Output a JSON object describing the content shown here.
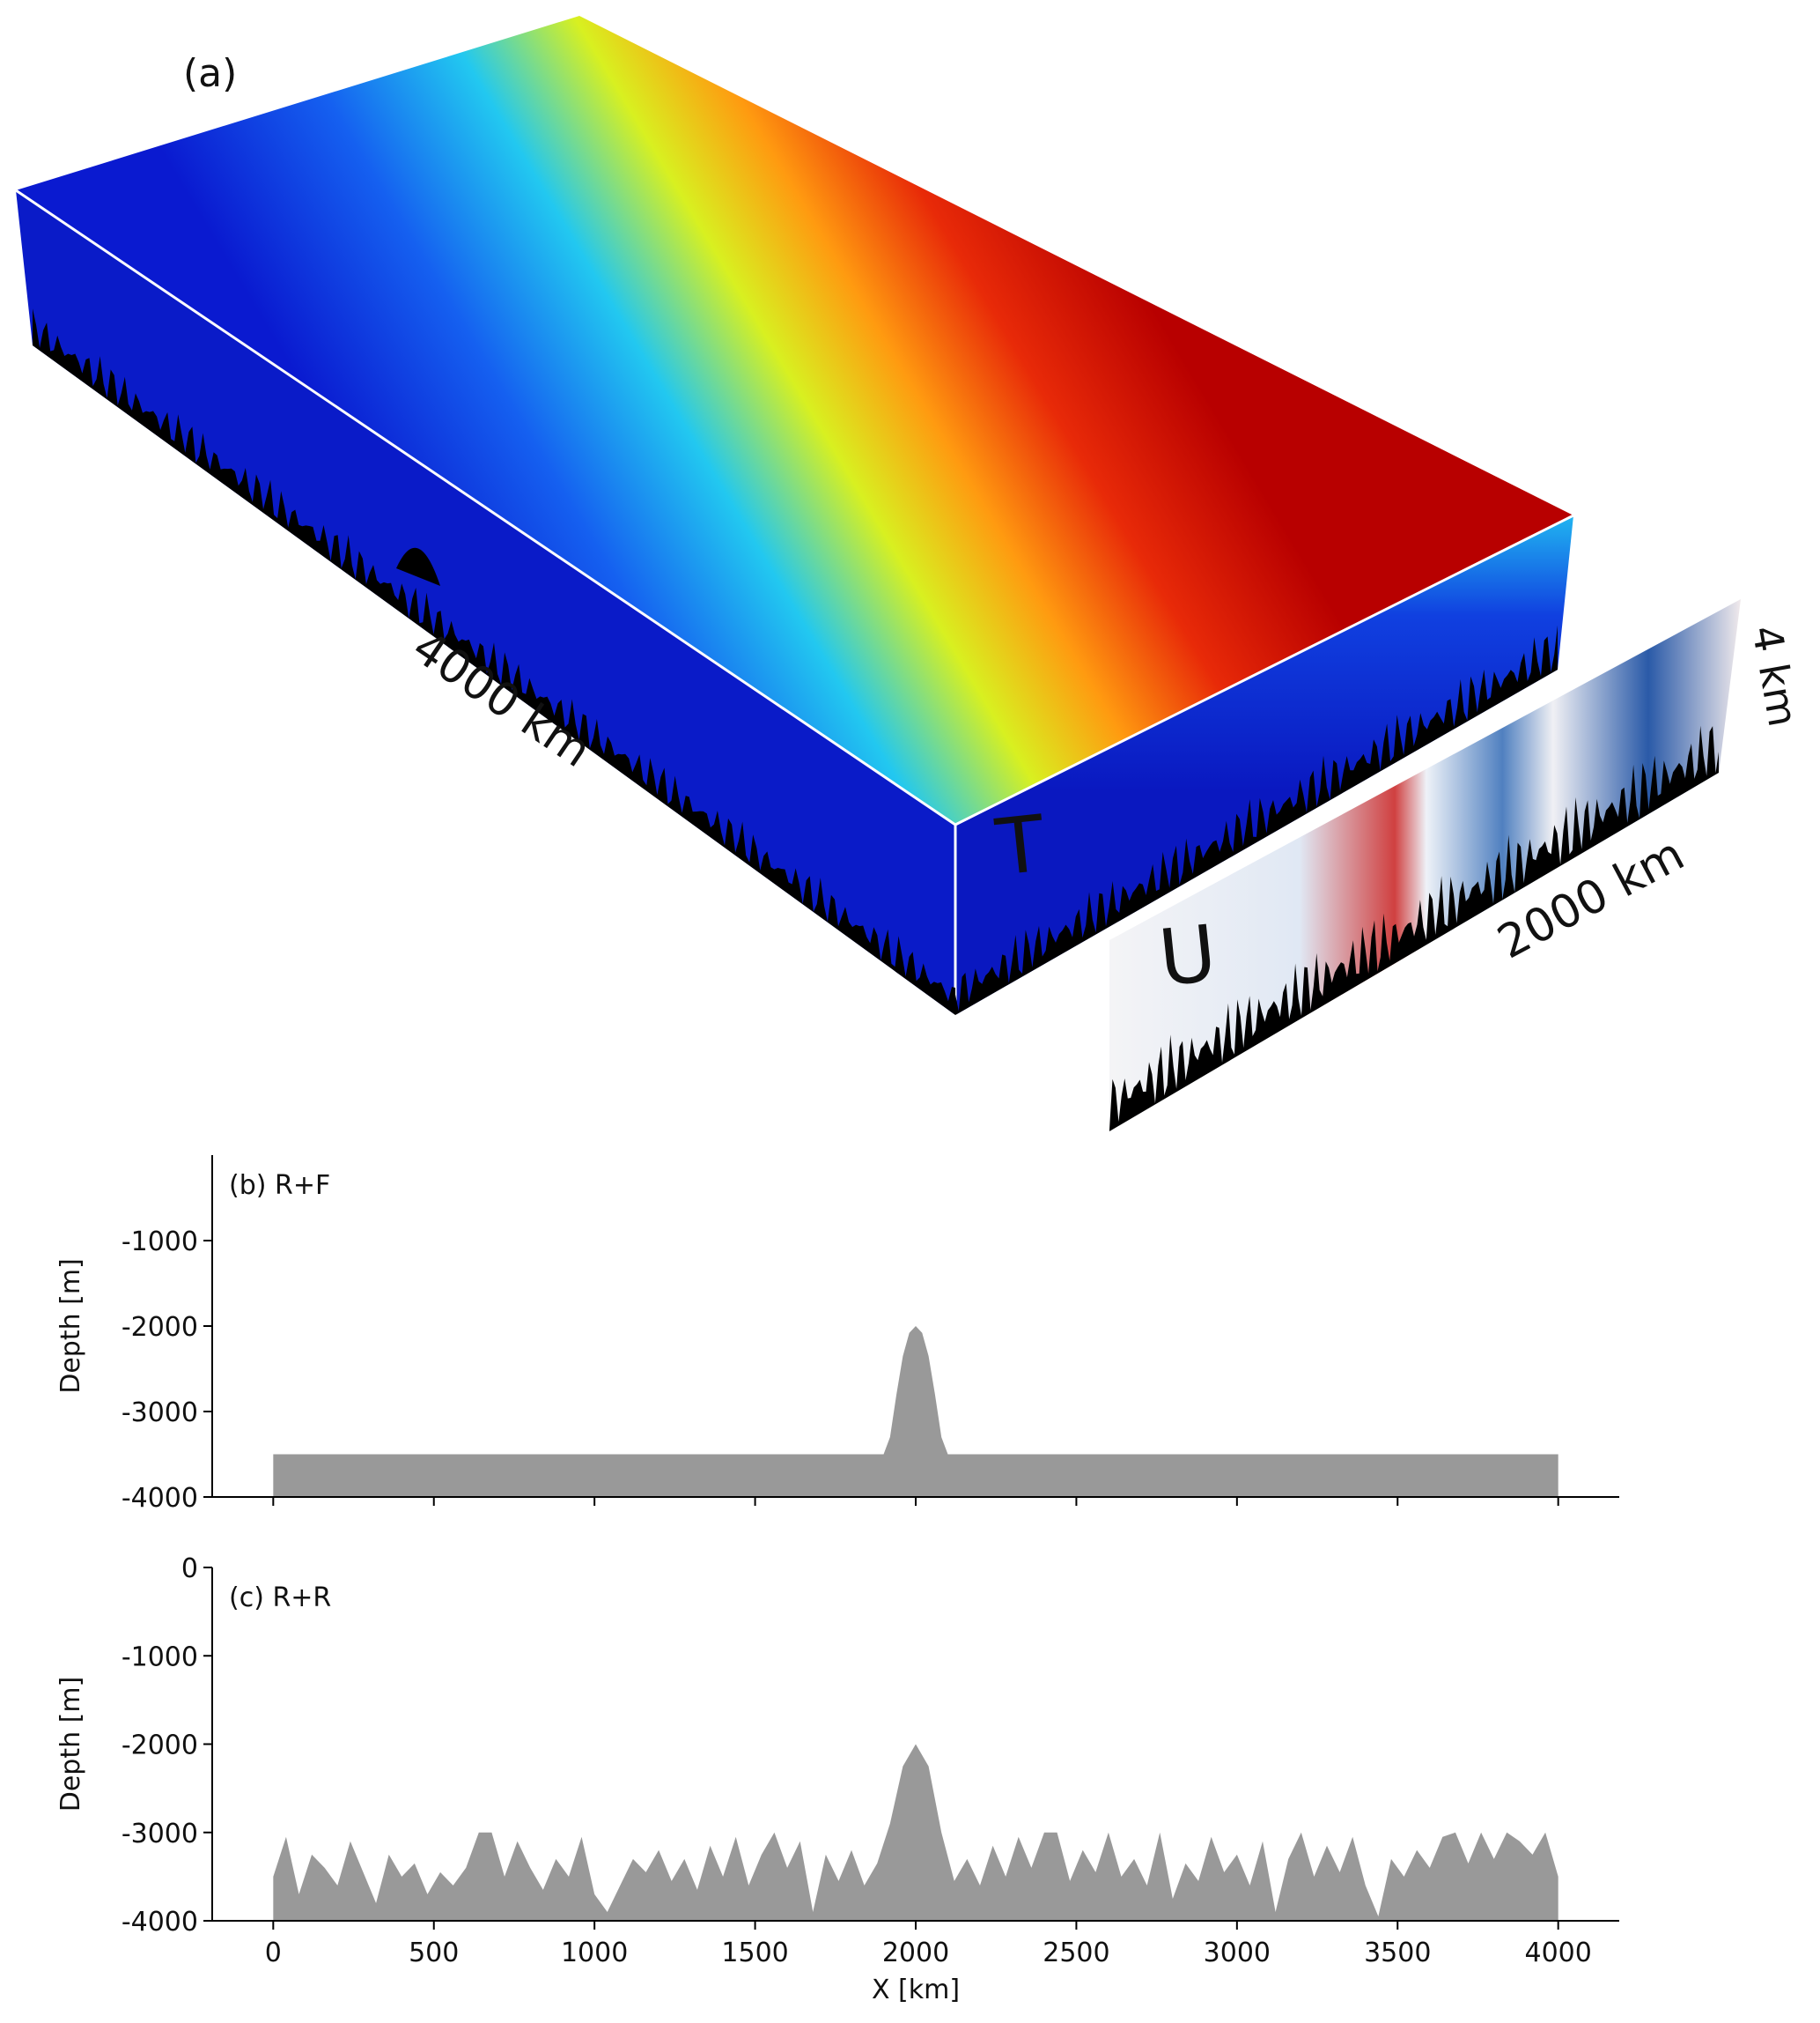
{
  "panel_a": {
    "labels": [
      "(a)",
      "4000 km",
      "T",
      "U",
      "2000 km",
      "4 km"
    ]
  },
  "chart_data": [
    {
      "type": "area",
      "title": "(b) R+F",
      "ylabel": "Depth [m]",
      "color": "#999999",
      "x": [
        0,
        1900,
        1920,
        1940,
        1960,
        1980,
        2000,
        2020,
        2040,
        2060,
        2080,
        2100,
        4000
      ],
      "values": [
        -3500,
        -3500,
        -3300,
        -2800,
        -2350,
        -2080,
        -2000,
        -2080,
        -2350,
        -2800,
        -3300,
        -3500,
        -3500
      ],
      "xlim": [
        -190,
        4190
      ],
      "ylim": [
        -4000,
        0
      ],
      "xticks": [
        0,
        500,
        1000,
        1500,
        2000,
        2500,
        3000,
        3500,
        4000
      ],
      "show_xtick_labels": false,
      "yticks": [
        -4000,
        -3000,
        -2000,
        -1000
      ]
    },
    {
      "type": "area",
      "title": "(c) R+R",
      "ylabel": "Depth [m]",
      "xlabel": "X [km]",
      "color": "#999999",
      "x": [
        0,
        40,
        80,
        120,
        160,
        200,
        240,
        280,
        320,
        360,
        400,
        440,
        480,
        520,
        560,
        600,
        640,
        680,
        720,
        760,
        800,
        840,
        880,
        920,
        960,
        1000,
        1040,
        1080,
        1120,
        1160,
        1200,
        1240,
        1280,
        1320,
        1360,
        1400,
        1440,
        1480,
        1520,
        1560,
        1600,
        1640,
        1680,
        1720,
        1760,
        1800,
        1840,
        1880,
        1920,
        1960,
        2000,
        2040,
        2080,
        2120,
        2160,
        2200,
        2240,
        2280,
        2320,
        2360,
        2400,
        2440,
        2480,
        2520,
        2560,
        2600,
        2640,
        2680,
        2720,
        2760,
        2800,
        2840,
        2880,
        2920,
        2960,
        3000,
        3040,
        3080,
        3120,
        3160,
        3200,
        3240,
        3280,
        3320,
        3360,
        3400,
        3440,
        3480,
        3520,
        3560,
        3600,
        3640,
        3680,
        3720,
        3760,
        3800,
        3840,
        3880,
        3920,
        3960,
        4000
      ],
      "values": [
        -3500,
        -3050,
        -3700,
        -3250,
        -3400,
        -3600,
        -3100,
        -3450,
        -3800,
        -3250,
        -3500,
        -3350,
        -3700,
        -3450,
        -3600,
        -3400,
        -3000,
        -3000,
        -3500,
        -3100,
        -3400,
        -3650,
        -3300,
        -3500,
        -3050,
        -3700,
        -3900,
        -3600,
        -3300,
        -3450,
        -3200,
        -3550,
        -3300,
        -3650,
        -3150,
        -3500,
        -3050,
        -3600,
        -3250,
        -3000,
        -3400,
        -3100,
        -3900,
        -3250,
        -3550,
        -3200,
        -3600,
        -3350,
        -2900,
        -2250,
        -2000,
        -2250,
        -3000,
        -3550,
        -3300,
        -3600,
        -3150,
        -3500,
        -3050,
        -3400,
        -3000,
        -3000,
        -3550,
        -3200,
        -3450,
        -3000,
        -3500,
        -3300,
        -3600,
        -3000,
        -3750,
        -3350,
        -3550,
        -3050,
        -3450,
        -3250,
        -3600,
        -3100,
        -3900,
        -3300,
        -3000,
        -3500,
        -3150,
        -3450,
        -3050,
        -3600,
        -3950,
        -3300,
        -3500,
        -3200,
        -3400,
        -3050,
        -3000,
        -3350,
        -3000,
        -3300,
        -3000,
        -3100,
        -3250,
        -3000,
        -3500
      ],
      "xlim": [
        -190,
        4190
      ],
      "ylim": [
        -4000,
        0
      ],
      "xticks": [
        0,
        500,
        1000,
        1500,
        2000,
        2500,
        3000,
        3500,
        4000
      ],
      "show_xtick_labels": true,
      "yticks": [
        -4000,
        -3000,
        -2000,
        -1000,
        0
      ]
    }
  ]
}
